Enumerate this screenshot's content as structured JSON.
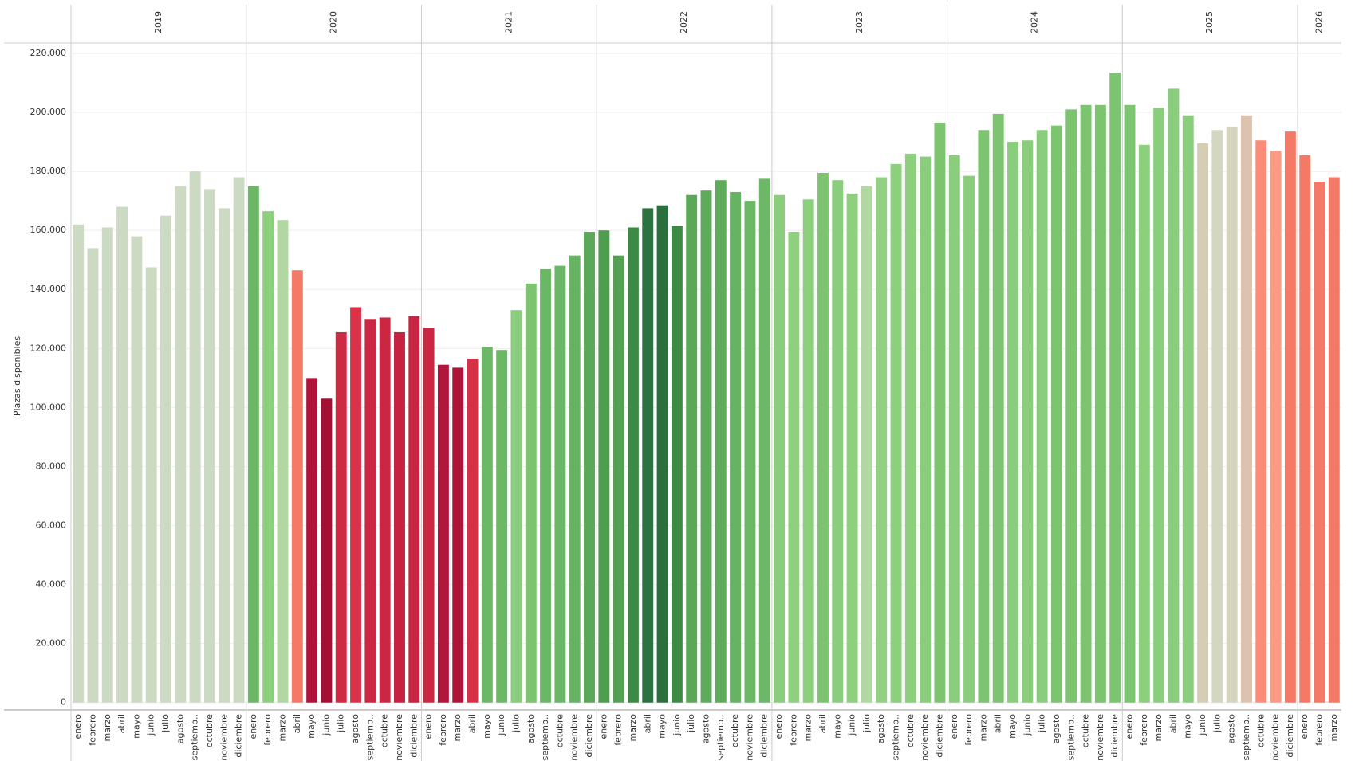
{
  "chart_data": {
    "type": "bar",
    "y_label": "Plazas disponibles",
    "ylim": [
      -2500,
      223500
    ],
    "yticks": [
      0,
      {
        "value": 20000,
        "label": "20.000"
      },
      {
        "value": 40000,
        "label": "40.000"
      },
      {
        "value": 60000,
        "label": "60.000"
      },
      {
        "value": 80000,
        "label": "80.000"
      },
      {
        "value": 100000,
        "label": "100.000"
      },
      {
        "value": 120000,
        "label": "120.000"
      },
      {
        "value": 140000,
        "label": "140.000"
      },
      {
        "value": 160000,
        "label": "160.000"
      },
      {
        "value": 180000,
        "label": "180.000"
      },
      {
        "value": 200000,
        "label": "200.000"
      },
      {
        "value": 220000,
        "label": "220.000"
      }
    ],
    "grid": true,
    "groups": [
      {
        "name": "2019",
        "categories": [
          "enero",
          "febrero",
          "marzo",
          "abril",
          "mayo",
          "junio",
          "julio",
          "agosto",
          "septiemb..",
          "octubre",
          "noviembre",
          "diciembre"
        ],
        "values": [
          162000,
          154000,
          161000,
          168000,
          158000,
          147500,
          165000,
          175000,
          180000,
          174000,
          167500,
          178000
        ],
        "colors": [
          "#ccd9c3",
          "#ccd9c3",
          "#ccd9c3",
          "#ccd9c3",
          "#ccd9c3",
          "#ccd9c3",
          "#ccd9c3",
          "#ccd9c3",
          "#ccd9c3",
          "#ccd9c3",
          "#ccd9c3",
          "#ccd9c3"
        ]
      },
      {
        "name": "2020",
        "categories": [
          "enero",
          "febrero",
          "marzo",
          "abril",
          "mayo",
          "junio",
          "julio",
          "agosto",
          "septiemb..",
          "octubre",
          "noviembre",
          "diciembre"
        ],
        "values": [
          175000,
          166500,
          163500,
          146500,
          110000,
          103000,
          125500,
          134000,
          130000,
          130500,
          125500,
          131000
        ],
        "colors": [
          "#6cb766",
          "#8ccf7c",
          "#b3d7a3",
          "#f47a68",
          "#ae1439",
          "#a60f34",
          "#cd2a44",
          "#d93349",
          "#cb2642",
          "#cc2742",
          "#c52241",
          "#c92442"
        ]
      },
      {
        "name": "2021",
        "categories": [
          "enero",
          "febrero",
          "marzo",
          "abril",
          "mayo",
          "junio",
          "julio",
          "agosto",
          "septiemb..",
          "octubre",
          "noviembre",
          "diciembre"
        ],
        "values": [
          127000,
          114500,
          113500,
          116500,
          120500,
          119500,
          133000,
          142000,
          147000,
          148000,
          151500,
          159500
        ],
        "colors": [
          "#cb2642",
          "#b1163c",
          "#ad1439",
          "#d53146",
          "#6cb866",
          "#6cb866",
          "#8acd7c",
          "#7cc46f",
          "#6ab865",
          "#6ab865",
          "#66b363",
          "#5aa858"
        ]
      },
      {
        "name": "2022",
        "categories": [
          "enero",
          "febrero",
          "marzo",
          "abril",
          "mayo",
          "junio",
          "julio",
          "agosto",
          "septiemb..",
          "octubre",
          "noviembre",
          "diciembre"
        ],
        "values": [
          160000,
          151500,
          161000,
          167500,
          168500,
          161500,
          172000,
          173500,
          177000,
          173000,
          170000,
          177500
        ],
        "colors": [
          "#4f9e50",
          "#53a254",
          "#3c8a43",
          "#2c7240",
          "#2b6f3e",
          "#3c8a43",
          "#5aa858",
          "#5eac5b",
          "#5eac5b",
          "#66b363",
          "#6cb866",
          "#6cb866"
        ]
      },
      {
        "name": "2023",
        "categories": [
          "enero",
          "febrero",
          "marzo",
          "abril",
          "mayo",
          "junio",
          "julio",
          "agosto",
          "septiemb..",
          "octubre",
          "noviembre",
          "diciembre"
        ],
        "values": [
          172000,
          159500,
          170500,
          179500,
          177000,
          172500,
          175000,
          178000,
          182500,
          186000,
          185000,
          196500
        ],
        "colors": [
          "#8acd7c",
          "#8fd07f",
          "#8ccf7d",
          "#7cc46f",
          "#8acd7c",
          "#8fd07f",
          "#b3d7a3",
          "#92d082",
          "#8ccf7d",
          "#8ccf7d",
          "#8acd7c",
          "#7cc46f"
        ]
      },
      {
        "name": "2024",
        "categories": [
          "enero",
          "febrero",
          "marzo",
          "abril",
          "mayo",
          "junio",
          "julio",
          "agosto",
          "septiemb..",
          "octubre",
          "noviembre",
          "diciembre"
        ],
        "values": [
          185500,
          178500,
          194000,
          199500,
          190000,
          190500,
          194000,
          195500,
          201000,
          202500,
          202500,
          213500
        ],
        "colors": [
          "#8acd7c",
          "#8acd7c",
          "#7cc46f",
          "#7cc46f",
          "#8acd7c",
          "#8acd7c",
          "#8acd7c",
          "#7cc46f",
          "#7cc46f",
          "#7cc46f",
          "#7cc46f",
          "#7cc46f"
        ]
      },
      {
        "name": "2025",
        "categories": [
          "enero",
          "febrero",
          "marzo",
          "abril",
          "mayo",
          "junio",
          "julio",
          "agosto",
          "septiemb..",
          "octubre",
          "noviembre",
          "diciembre"
        ],
        "values": [
          202500,
          189000,
          201500,
          208000,
          199000,
          189500,
          194000,
          195000,
          199000,
          190500,
          187000,
          193500
        ],
        "colors": [
          "#7cc46f",
          "#8ccf7d",
          "#8acd7c",
          "#8acd7c",
          "#8acd7c",
          "#d5cdb6",
          "#d3d6c0",
          "#d5d5bf",
          "#ddc3ae",
          "#fb8d78",
          "#fc9a84",
          "#f47a68"
        ]
      },
      {
        "name": "2026",
        "categories": [
          "enero",
          "febrero",
          "marzo"
        ],
        "values": [
          185500,
          176500,
          178000
        ],
        "colors": [
          "#f47a68",
          "#f47a68",
          "#f47a68"
        ]
      }
    ]
  }
}
